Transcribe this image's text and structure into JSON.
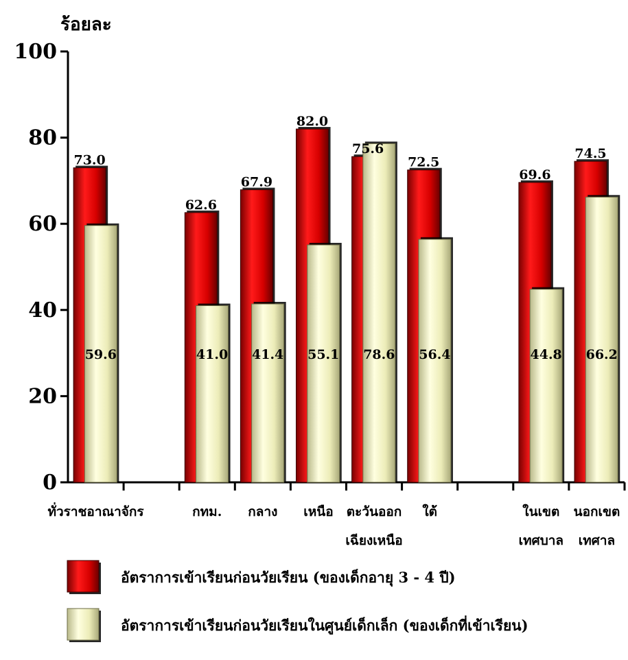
{
  "chart_data": {
    "type": "bar",
    "ylabel": "ร้อยละ",
    "ylim": [
      0,
      100
    ],
    "yticks": [
      0,
      20,
      40,
      60,
      80,
      100
    ],
    "categories": [
      [
        "ทั่วราชอาณาจักร"
      ],
      [
        ""
      ],
      [
        "กทม."
      ],
      [
        "กลาง"
      ],
      [
        "เหนือ"
      ],
      [
        "ตะวันออก",
        "เฉียงเหนือ"
      ],
      [
        "ใต้"
      ],
      [
        ""
      ],
      [
        "ในเขต",
        "เทศบาล"
      ],
      [
        "นอกเขต",
        "เทศาล"
      ]
    ],
    "series": [
      {
        "name": "อัตราการเข้าเรียนก่อนวัยเรียน (ของเด็กอายุ 3 - 4 ปี)",
        "values": [
          73.0,
          null,
          62.6,
          67.9,
          82.0,
          75.6,
          72.5,
          null,
          69.6,
          74.5
        ],
        "labels": [
          "73.0",
          "",
          "62.6",
          "67.9",
          "82.0",
          "75.6",
          "72.5",
          "",
          "69.6",
          "74.5"
        ],
        "color": "#e00000"
      },
      {
        "name": "อัตราการเข้าเรียนก่อนวัยเรียนในศูนย์เด็กเล็ก (ของเด็กที่เข้าเรียน)",
        "values": [
          59.6,
          null,
          41.0,
          41.4,
          55.1,
          78.6,
          56.4,
          null,
          44.8,
          66.2
        ],
        "labels": [
          "59.6",
          "",
          "41.0",
          "41.4",
          "55.1",
          "78.6",
          "56.4",
          "",
          "44.8",
          "66.2"
        ],
        "color": "#f3f3c0"
      }
    ],
    "legend": "bottom"
  }
}
